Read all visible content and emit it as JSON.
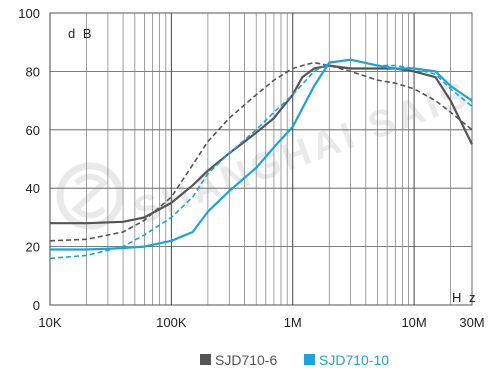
{
  "chart_data": {
    "type": "line",
    "title": "",
    "xscale": "log",
    "xlim": [
      10000,
      30000000
    ],
    "ylim": [
      0,
      100
    ],
    "yticks": [
      0,
      20,
      40,
      60,
      80,
      100
    ],
    "xticks": [
      {
        "value": 10000,
        "label": "10K"
      },
      {
        "value": 100000,
        "label": "100K"
      },
      {
        "value": 1000000,
        "label": "1M"
      },
      {
        "value": 10000000,
        "label": "10M"
      },
      {
        "value": 30000000,
        "label": "30M"
      }
    ],
    "ylabel": "d B",
    "xlabel": "H z",
    "grid": true,
    "legend_position": "bottom-center",
    "watermark": "SHANGHAI SAIS",
    "series": [
      {
        "name": "SJD710-6",
        "color": "#555555",
        "dashed": false,
        "x": [
          10000,
          20000,
          40000,
          60000,
          100000,
          150000,
          200000,
          300000,
          500000,
          700000,
          1000000,
          1200000,
          1500000,
          2000000,
          3000000,
          5000000,
          7000000,
          10000000,
          15000000,
          20000000,
          30000000
        ],
        "y": [
          28,
          28,
          28.5,
          30,
          35,
          41,
          46,
          52,
          59,
          64,
          72,
          78,
          81,
          82,
          81,
          81,
          81,
          80,
          78,
          70,
          55
        ]
      },
      {
        "name": "SJD710-6",
        "color": "#555555",
        "dashed": true,
        "x": [
          10000,
          20000,
          40000,
          60000,
          100000,
          150000,
          200000,
          300000,
          500000,
          700000,
          1000000,
          1200000,
          1500000,
          2000000,
          3000000,
          5000000,
          7000000,
          10000000,
          15000000,
          20000000,
          30000000
        ],
        "y": [
          22,
          22.5,
          25,
          29,
          37,
          48,
          56,
          64,
          72,
          77,
          81,
          82,
          83,
          82,
          80,
          77,
          76,
          74,
          70,
          66,
          60
        ]
      },
      {
        "name": "SJD710-10",
        "color": "#1aa3dc",
        "dashed": false,
        "x": [
          10000,
          20000,
          40000,
          60000,
          100000,
          150000,
          200000,
          300000,
          500000,
          700000,
          1000000,
          1500000,
          2000000,
          3000000,
          5000000,
          7000000,
          10000000,
          15000000,
          20000000,
          30000000
        ],
        "y": [
          19,
          19,
          19.5,
          20,
          22,
          25,
          32,
          39,
          47,
          54,
          61,
          75,
          83,
          84,
          82,
          81,
          81,
          80,
          75,
          70
        ]
      },
      {
        "name": "SJD710-10",
        "color": "#1aa3dc",
        "dashed": true,
        "x": [
          10000,
          20000,
          40000,
          60000,
          100000,
          150000,
          200000,
          300000,
          500000,
          700000,
          1000000,
          1500000,
          2000000,
          3000000,
          5000000,
          7000000,
          10000000,
          15000000,
          20000000,
          30000000
        ],
        "y": [
          16,
          17,
          20,
          24,
          30,
          37,
          45,
          52,
          60,
          66,
          72,
          80,
          83,
          84,
          82,
          82,
          81,
          79,
          74,
          68
        ]
      }
    ]
  },
  "legend": [
    {
      "label": "SJD710-6",
      "color": "#555555"
    },
    {
      "label": "SJD710-10",
      "color": "#1aa3dc"
    }
  ]
}
